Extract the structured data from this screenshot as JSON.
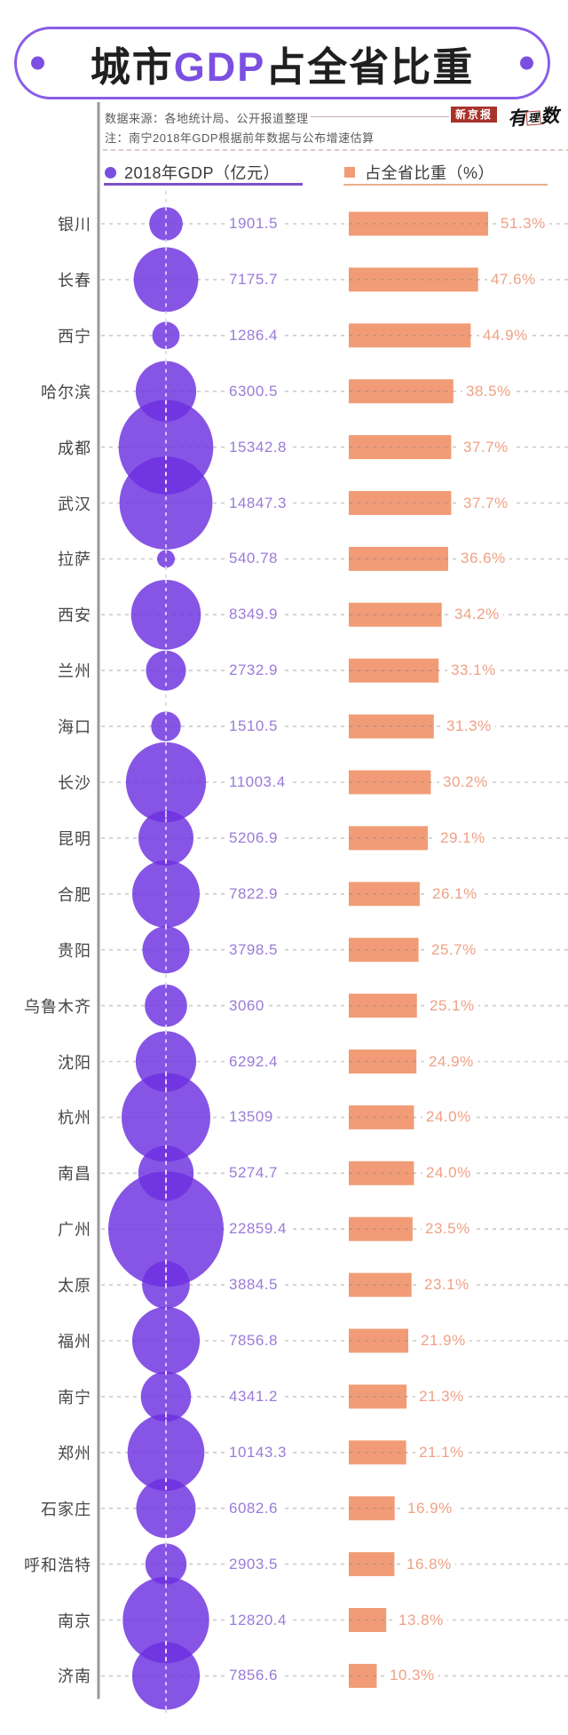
{
  "header": {
    "title_left": "城市",
    "title_accent": "GDP",
    "title_right": "占全省比重"
  },
  "meta": {
    "source": "数据来源：各地统计局、公开报道整理",
    "note": "注：南宁2018年GDP根据前年数据与公布增速估算",
    "logo_box": "新京报",
    "logo_script_a": "有",
    "logo_script_b": "理",
    "logo_script_c": "数"
  },
  "legend": {
    "gdp_label": "2018年GDP（亿元）",
    "share_label": "占全省比重（%）"
  },
  "colors": {
    "bubble_purple": "#6d2fdf",
    "accent_purple": "#7b4fe0",
    "value_purple": "#9a7bd8",
    "bar_orange": "#f19c76",
    "pct_orange": "#efa185",
    "axis_gray": "#9a9a9a",
    "dash_gray": "#d6d6d6",
    "logo_red": "#a8332b"
  },
  "chart_data": {
    "type": "bubble-bar",
    "title": "城市GDP占全省比重",
    "series": [
      {
        "name": "2018年GDP（亿元）",
        "mark": "bubble",
        "encoding": "area ∝ value"
      },
      {
        "name": "占全省比重（%）",
        "mark": "bar",
        "encoding": "length ∝ value"
      }
    ],
    "share_axis_range": [
      0,
      55
    ],
    "grid": "dashed row leaders",
    "rows": [
      {
        "city": "银川",
        "gdp": 1901.5,
        "gdp_label": "1901.5",
        "share": 51.3,
        "share_label": "51.3%"
      },
      {
        "city": "长春",
        "gdp": 7175.7,
        "gdp_label": "7175.7",
        "share": 47.6,
        "share_label": "47.6%"
      },
      {
        "city": "西宁",
        "gdp": 1286.4,
        "gdp_label": "1286.4",
        "share": 44.9,
        "share_label": "44.9%"
      },
      {
        "city": "哈尔滨",
        "gdp": 6300.5,
        "gdp_label": "6300.5",
        "share": 38.5,
        "share_label": "38.5%"
      },
      {
        "city": "成都",
        "gdp": 15342.8,
        "gdp_label": "15342.8",
        "share": 37.7,
        "share_label": "37.7%"
      },
      {
        "city": "武汉",
        "gdp": 14847.3,
        "gdp_label": "14847.3",
        "share": 37.7,
        "share_label": "37.7%"
      },
      {
        "city": "拉萨",
        "gdp": 540.78,
        "gdp_label": "540.78",
        "share": 36.6,
        "share_label": "36.6%"
      },
      {
        "city": "西安",
        "gdp": 8349.9,
        "gdp_label": "8349.9",
        "share": 34.2,
        "share_label": "34.2%"
      },
      {
        "city": "兰州",
        "gdp": 2732.9,
        "gdp_label": "2732.9",
        "share": 33.1,
        "share_label": "33.1%"
      },
      {
        "city": "海口",
        "gdp": 1510.5,
        "gdp_label": "1510.5",
        "share": 31.3,
        "share_label": "31.3%"
      },
      {
        "city": "长沙",
        "gdp": 11003.4,
        "gdp_label": "11003.4",
        "share": 30.2,
        "share_label": "30.2%"
      },
      {
        "city": "昆明",
        "gdp": 5206.9,
        "gdp_label": "5206.9",
        "share": 29.1,
        "share_label": "29.1%"
      },
      {
        "city": "合肥",
        "gdp": 7822.9,
        "gdp_label": "7822.9",
        "share": 26.1,
        "share_label": "26.1%"
      },
      {
        "city": "贵阳",
        "gdp": 3798.5,
        "gdp_label": "3798.5",
        "share": 25.7,
        "share_label": "25.7%"
      },
      {
        "city": "乌鲁木齐",
        "gdp": 3060,
        "gdp_label": "3060",
        "share": 25.1,
        "share_label": "25.1%"
      },
      {
        "city": "沈阳",
        "gdp": 6292.4,
        "gdp_label": "6292.4",
        "share": 24.9,
        "share_label": "24.9%"
      },
      {
        "city": "杭州",
        "gdp": 13509,
        "gdp_label": "13509",
        "share": 24.0,
        "share_label": "24.0%"
      },
      {
        "city": "南昌",
        "gdp": 5274.7,
        "gdp_label": "5274.7",
        "share": 24.0,
        "share_label": "24.0%"
      },
      {
        "city": "广州",
        "gdp": 22859.4,
        "gdp_label": "22859.4",
        "share": 23.5,
        "share_label": "23.5%"
      },
      {
        "city": "太原",
        "gdp": 3884.5,
        "gdp_label": "3884.5",
        "share": 23.1,
        "share_label": "23.1%"
      },
      {
        "city": "福州",
        "gdp": 7856.8,
        "gdp_label": "7856.8",
        "share": 21.9,
        "share_label": "21.9%"
      },
      {
        "city": "南宁",
        "gdp": 4341.2,
        "gdp_label": "4341.2",
        "share": 21.3,
        "share_label": "21.3%"
      },
      {
        "city": "郑州",
        "gdp": 10143.3,
        "gdp_label": "10143.3",
        "share": 21.1,
        "share_label": "21.1%"
      },
      {
        "city": "石家庄",
        "gdp": 6082.6,
        "gdp_label": "6082.6",
        "share": 16.9,
        "share_label": "16.9%"
      },
      {
        "city": "呼和浩特",
        "gdp": 2903.5,
        "gdp_label": "2903.5",
        "share": 16.8,
        "share_label": "16.8%"
      },
      {
        "city": "南京",
        "gdp": 12820.4,
        "gdp_label": "12820.4",
        "share": 13.8,
        "share_label": "13.8%"
      },
      {
        "city": "济南",
        "gdp": 7856.6,
        "gdp_label": "7856.6",
        "share": 10.3,
        "share_label": "10.3%"
      }
    ]
  }
}
